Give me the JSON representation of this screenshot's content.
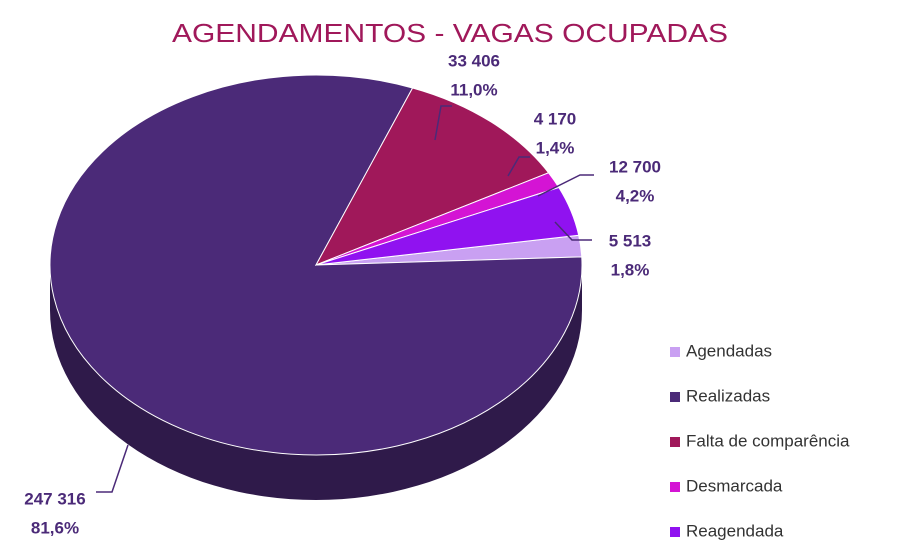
{
  "chart_data": {
    "type": "pie",
    "title": "AGENDAMENTOS - VAGAS OCUPADAS",
    "categories": [
      "Agendadas",
      "Realizadas",
      "Falta de comparência",
      "Desmarcada",
      "Reagendada"
    ],
    "values": [
      5513,
      247316,
      33406,
      4170,
      12700
    ],
    "value_labels": [
      "5 513",
      "247 316",
      "33 406",
      "4 170",
      "12 700"
    ],
    "percent_labels": [
      "1,8%",
      "81,6%",
      "11,0%",
      "1,4%",
      "4,2%"
    ],
    "colors": [
      "#c9a0f2",
      "#4b2a78",
      "#a0185a",
      "#d414d4",
      "#9012f0"
    ],
    "legend": "right"
  }
}
